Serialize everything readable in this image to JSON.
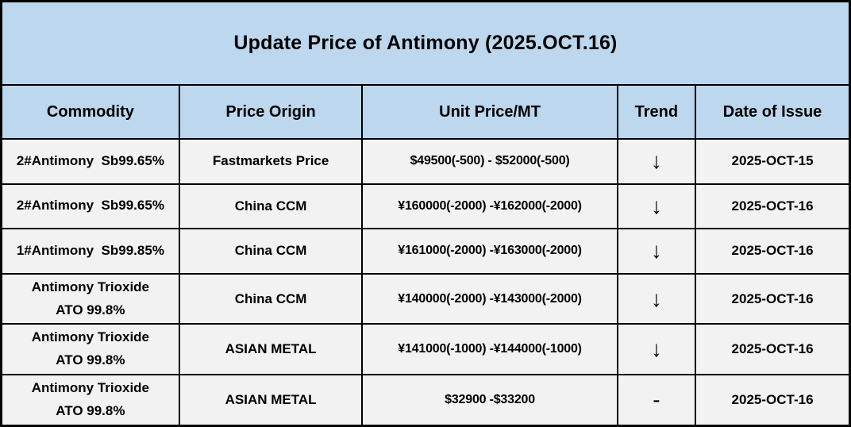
{
  "title": "Update Price of Antimony (2025.OCT.16)",
  "colors": {
    "header_bg": "#BDD7EE",
    "row_bg": "#F2F2F2",
    "border": "#000000",
    "text": "#000000"
  },
  "columns": {
    "commodity": "Commodity",
    "origin": "Price Origin",
    "price": "Unit Price/MT",
    "trend": "Trend",
    "date": "Date of Issue"
  },
  "rows": [
    {
      "commodity": "2#Antimony  Sb99.65%",
      "origin": "Fastmarkets Price",
      "price": "$49500(-500) - $52000(-500)",
      "trend": "↓",
      "date": "2025-OCT-15"
    },
    {
      "commodity": "2#Antimony  Sb99.65%",
      "origin": "China CCM",
      "price": "¥160000(-2000) -¥162000(-2000)",
      "trend": "↓",
      "date": "2025-OCT-16"
    },
    {
      "commodity": "1#Antimony  Sb99.85%",
      "origin": "China CCM",
      "price": "¥161000(-2000) -¥163000(-2000)",
      "trend": "↓",
      "date": "2025-OCT-16"
    },
    {
      "commodity": "Antimony Trioxide\nATO 99.8%",
      "origin": "China CCM",
      "price": "¥140000(-2000) -¥143000(-2000)",
      "trend": "↓",
      "date": "2025-OCT-16"
    },
    {
      "commodity": "Antimony Trioxide\nATO 99.8%",
      "origin": "ASIAN METAL",
      "price": "¥141000(-1000) -¥144000(-1000)",
      "trend": "↓",
      "date": "2025-OCT-16"
    },
    {
      "commodity": "Antimony Trioxide\nATO 99.8%",
      "origin": "ASIAN METAL",
      "price": "$32900 -$33200",
      "trend": "-",
      "date": "2025-OCT-16"
    }
  ],
  "chart_data": {
    "type": "table",
    "title": "Update Price of Antimony (2025.OCT.16)",
    "columns": [
      "Commodity",
      "Price Origin",
      "Unit Price/MT",
      "Trend",
      "Date of Issue"
    ],
    "rows": [
      [
        "2#Antimony  Sb99.65%",
        "Fastmarkets Price",
        "$49500(-500) - $52000(-500)",
        "down",
        "2025-OCT-15"
      ],
      [
        "2#Antimony  Sb99.65%",
        "China CCM",
        "¥160000(-2000) -¥162000(-2000)",
        "down",
        "2025-OCT-16"
      ],
      [
        "1#Antimony  Sb99.85%",
        "China CCM",
        "¥161000(-2000) -¥163000(-2000)",
        "down",
        "2025-OCT-16"
      ],
      [
        "Antimony Trioxide ATO 99.8%",
        "China CCM",
        "¥140000(-2000) -¥143000(-2000)",
        "down",
        "2025-OCT-16"
      ],
      [
        "Antimony Trioxide ATO 99.8%",
        "ASIAN METAL",
        "¥141000(-1000) -¥144000(-1000)",
        "down",
        "2025-OCT-16"
      ],
      [
        "Antimony Trioxide ATO 99.8%",
        "ASIAN METAL",
        "$32900 -$33200",
        "flat",
        "2025-OCT-16"
      ]
    ]
  }
}
